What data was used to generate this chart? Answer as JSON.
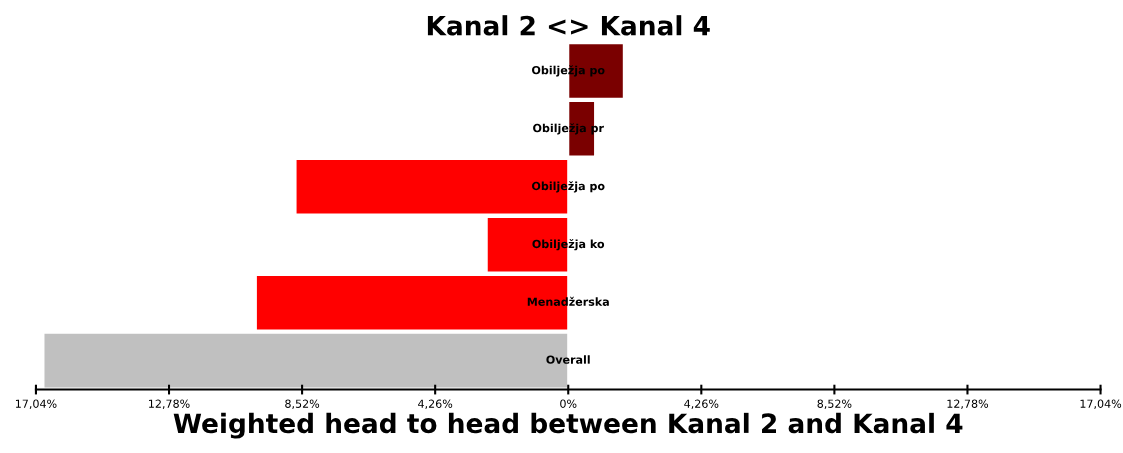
{
  "chart_data": {
    "type": "bar",
    "orientation": "horizontal",
    "title": "Kanal 2 <> Kanal 4",
    "xlabel": "Weighted head to head between Kanal 2 and Kanal 4",
    "categories": [
      "Obilježja po",
      "Obilježja pr",
      "Obilježja po",
      "Obilježja ko",
      "Menadžerska",
      "Overall"
    ],
    "values": [
      1.78,
      0.86,
      -8.73,
      -2.61,
      -10.0,
      -16.8
    ],
    "colors": [
      "#7a0000",
      "#7a0000",
      "#ff0000",
      "#ff0000",
      "#ff0000",
      "#c0c0c0"
    ],
    "xlim": [
      -17.04,
      17.04
    ],
    "xticks": [
      {
        "value": -17.04,
        "label": "17,04%"
      },
      {
        "value": -12.78,
        "label": "12,78%"
      },
      {
        "value": -8.52,
        "label": "8,52%"
      },
      {
        "value": -4.26,
        "label": "4,26%"
      },
      {
        "value": 0,
        "label": "0%"
      },
      {
        "value": 4.26,
        "label": "4,26%"
      },
      {
        "value": 8.52,
        "label": "8,52%"
      },
      {
        "value": 12.78,
        "label": "12,78%"
      },
      {
        "value": 17.04,
        "label": "17,04%"
      }
    ],
    "grid": false,
    "legend": false
  }
}
